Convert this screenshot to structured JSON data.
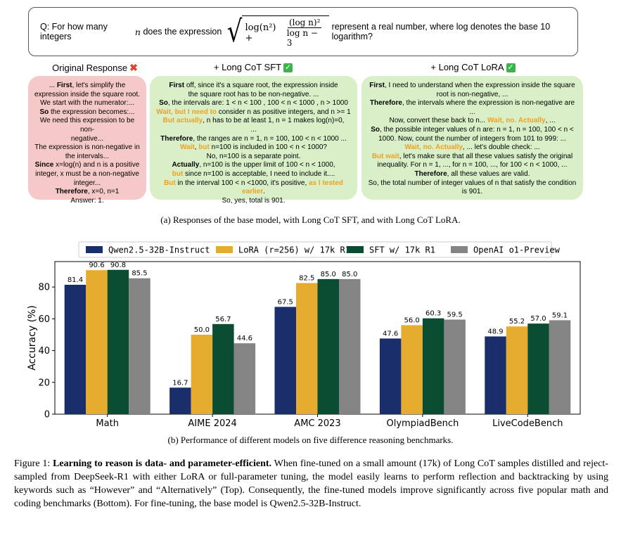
{
  "question": {
    "prefix": "Q: For how many integers ",
    "var": "n",
    "middle": " does the expression ",
    "radicand_left": "log(n²) +",
    "frac_num": "(log n)²",
    "frac_den": "log n − 3",
    "suffix": "represent a real number, where log denotes the base 10 logarithm?"
  },
  "columns": [
    {
      "title": "Original Response",
      "mark": "✖"
    },
    {
      "title": "+ Long CoT SFT",
      "mark": "✓"
    },
    {
      "title": "+ Long CoT LoRA",
      "mark": "✓"
    }
  ],
  "original": [
    [
      [
        "n",
        "... "
      ],
      [
        "b",
        "First"
      ],
      [
        "n",
        ", let's simplify the"
      ]
    ],
    [
      [
        "n",
        "expression inside the square root."
      ]
    ],
    [
      [
        "n",
        "We start with the numerator:..."
      ]
    ],
    [
      [
        "b",
        "So"
      ],
      [
        "n",
        " the expression becomes:..."
      ]
    ],
    [
      [
        "n",
        "We need this expression to be non-"
      ]
    ],
    [
      [
        "n",
        "negative..."
      ]
    ],
    [
      [
        "n",
        "The expression is non-negative in"
      ]
    ],
    [
      [
        "n",
        "the intervals..."
      ]
    ],
    [
      [
        "b",
        "Since"
      ],
      [
        "n",
        " x=log(n) and n is a positive"
      ]
    ],
    [
      [
        "n",
        "integer, x must be a non-negative"
      ]
    ],
    [
      [
        "n",
        "integer..."
      ]
    ],
    [
      [
        "b",
        "Therefore"
      ],
      [
        "n",
        ", x=0, n=1"
      ]
    ],
    [
      [
        "n",
        "Answer: 1."
      ]
    ]
  ],
  "sft": [
    [
      [
        "b",
        "First"
      ],
      [
        "n",
        " off, since it's a square root, the expression inside"
      ]
    ],
    [
      [
        "n",
        "the square root has to be non-negative. ..."
      ]
    ],
    [
      [
        "b",
        "So"
      ],
      [
        "n",
        ", the intervals are: 1 < n < 100 , 100 < n < 1000 , n > 1000"
      ]
    ],
    [
      [
        "k",
        "Wait, but I need to"
      ],
      [
        "n",
        " consider n as positive integers, and n >= 1"
      ]
    ],
    [
      [
        "k",
        "But actually"
      ],
      [
        "n",
        ", n has to be at least 1, n = 1 makes log(n)=0,"
      ]
    ],
    [
      [
        "n",
        "..."
      ]
    ],
    [
      [
        "b",
        "Therefore"
      ],
      [
        "n",
        ", the ranges are n = 1, n = 100, 100 < n < 1000 ..."
      ]
    ],
    [
      [
        "k",
        "Wait"
      ],
      [
        "n",
        ", "
      ],
      [
        "k",
        "but"
      ],
      [
        "n",
        " n=100 is included in 100 < n < 1000?"
      ]
    ],
    [
      [
        "n",
        "No, n=100 is a separate point."
      ]
    ],
    [
      [
        "b",
        "Actually"
      ],
      [
        "n",
        ", n=100 is the upper limit of 100 < n < 1000,"
      ]
    ],
    [
      [
        "k",
        "but"
      ],
      [
        "n",
        " since n=100 is acceptable, I need to include it...."
      ]
    ],
    [
      [
        "k",
        "But"
      ],
      [
        "n",
        " in the interval 100 < n <1000, it's positive, "
      ],
      [
        "k",
        "as I tested"
      ]
    ],
    [
      [
        "k",
        "earlier"
      ],
      [
        "n",
        "."
      ]
    ],
    [
      [
        "n",
        "So, yes, total is 901."
      ]
    ]
  ],
  "lora": [
    [
      [
        "b",
        "First"
      ],
      [
        "n",
        ", I need to understand when the expression inside the square"
      ]
    ],
    [
      [
        "n",
        "root is non-negative, ..."
      ]
    ],
    [
      [
        "b",
        "Therefore"
      ],
      [
        "n",
        ", the intervals where the expression is non-negative are ..."
      ]
    ],
    [
      [
        "n",
        "Now, convert these back to n... "
      ],
      [
        "k",
        "Wait, no. Actually"
      ],
      [
        "n",
        ", ..."
      ]
    ],
    [
      [
        "b",
        "So"
      ],
      [
        "n",
        ", the possible integer values of n are: n = 1, n = 100, 100 < n <"
      ]
    ],
    [
      [
        "n",
        "1000. Now, count the number of integers from 101 to 999: ..."
      ]
    ],
    [
      [
        "k",
        "Wait, no. Actually"
      ],
      [
        "n",
        ", ... let's double check: ..."
      ]
    ],
    [
      [
        "k",
        "But wait"
      ],
      [
        "n",
        ", let's make sure that all these values satisfy the original"
      ]
    ],
    [
      [
        "n",
        "inequality. For n = 1, ..., for n = 100, ..., for 100 < n < 1000, ..."
      ]
    ],
    [
      [
        "b",
        "Therefore"
      ],
      [
        "n",
        ", all these values are valid."
      ]
    ],
    [
      [
        "n",
        "So, the total number of integer values of n that satisfy the condition"
      ]
    ],
    [
      [
        "n",
        "is 901."
      ]
    ]
  ],
  "caption_a": "(a) Responses of the base model, with Long CoT SFT, and with Long CoT LoRA.",
  "caption_b": "(b) Performance of different models on five difference reasoning benchmarks.",
  "figure_caption": {
    "label": "Figure 1: ",
    "bold": "Learning to reason is data- and parameter-efficient.",
    "text": " When fine-tuned on a small amount (17k) of Long CoT samples distilled and reject-sampled from DeepSeek-R1 with either LoRA or full-parameter tuning, the model easily learns to perform reflection and backtracking by using keywords such as “However” and “Alternatively” (Top). Consequently, the fine-tuned models improve significantly across five popular math and coding benchmarks (Bottom). For fine-tuning, the base model is Qwen2.5-32B-Instruct."
  },
  "colors": {
    "qwen": "#1a2e6c",
    "lora": "#e5ac30",
    "sft": "#0b4d32",
    "o1": "#848484"
  },
  "chart_data": {
    "type": "bar",
    "categories": [
      "Math",
      "AIME 2024",
      "AMC 2023",
      "OlympiadBench",
      "LiveCodeBench"
    ],
    "series": [
      {
        "name": "Qwen2.5-32B-Instruct",
        "values": [
          81.4,
          16.7,
          67.5,
          47.6,
          48.9
        ]
      },
      {
        "name": "LoRA (r=256) w/ 17k R1",
        "values": [
          90.6,
          50.0,
          82.5,
          56.0,
          55.2
        ]
      },
      {
        "name": "SFT w/ 17k R1",
        "values": [
          90.8,
          56.7,
          85.0,
          60.3,
          57.0
        ]
      },
      {
        "name": "OpenAI o1-Preview",
        "values": [
          85.5,
          44.6,
          85.0,
          59.5,
          59.1
        ]
      }
    ],
    "ylabel": "Accuracy (%)",
    "ylim": [
      0,
      96
    ],
    "yticks": [
      0,
      20,
      40,
      60,
      80
    ],
    "legend": "top"
  }
}
